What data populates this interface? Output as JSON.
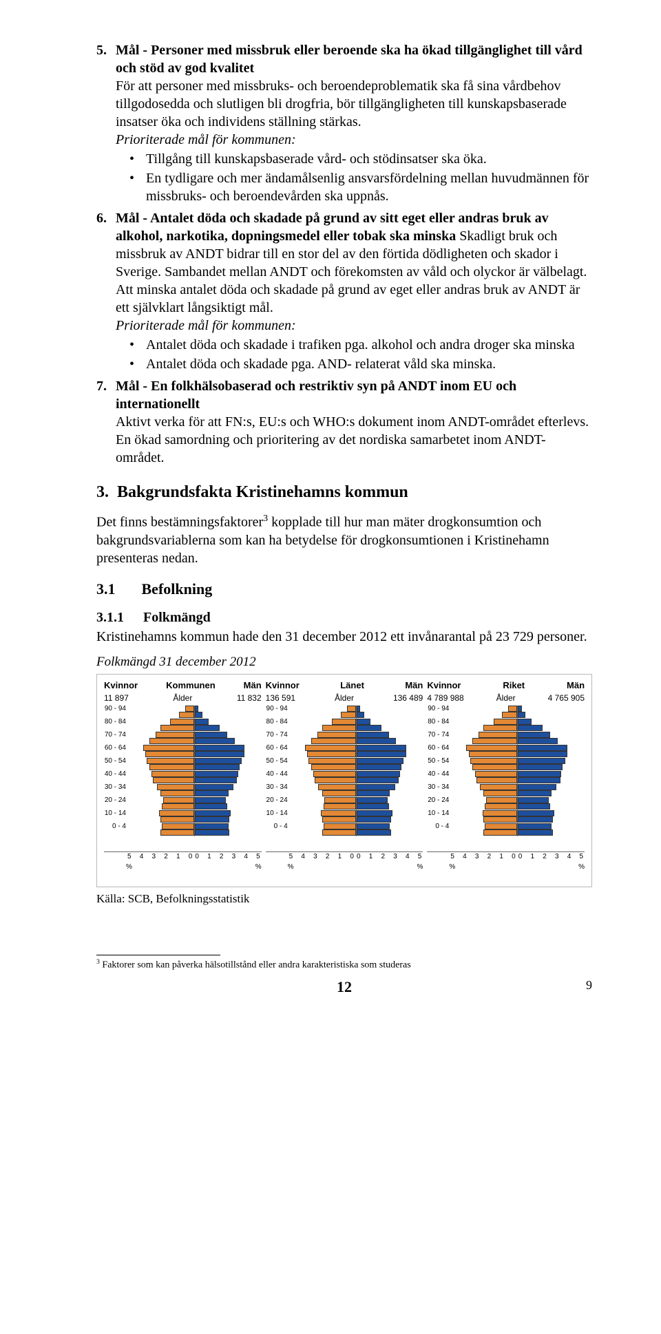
{
  "items": [
    {
      "num": "5.",
      "title": "Mål - Personer med missbruk eller beroende ska ha ökad tillgänglighet till vård och stöd av god kvalitet",
      "body": "För att personer med missbruks- och beroendeproblematik ska få sina vårdbehov tillgodosedda och slutligen bli drogfria, bör tillgängligheten till kunskapsbaserade insatser öka och individens ställning stärkas.",
      "prior_label": "Prioriterade mål för kommunen:",
      "bullets": [
        "Tillgång till kunskapsbaserade vård- och stödinsatser ska öka.",
        "En tydligare och mer ändamålsenlig ansvarsfördelning mellan huvudmännen för missbruks- och beroendevården ska uppnås."
      ]
    },
    {
      "num": "6.",
      "title": "Mål - Antalet döda och skadade på grund av sitt eget eller andras bruk av alkohol, narkotika, dopningsmedel eller tobak ska minska",
      "body": "Skadligt bruk och missbruk av ANDT bidrar till en stor del av den förtida dödligheten och skador i Sverige. Sambandet mellan ANDT och förekomsten av våld och olyckor är välbelagt. Att minska antalet döda och skadade på grund av eget eller andras bruk av ANDT är ett självklart långsiktigt mål.",
      "prior_label": "Prioriterade mål för kommunen:",
      "bullets": [
        "Antalet döda och skadade i trafiken pga. alkohol och andra droger ska minska",
        "Antalet döda och skadade pga. AND- relaterat våld ska minska."
      ]
    },
    {
      "num": "7.",
      "title": "Mål - En folkhälsobaserad och restriktiv syn på ANDT inom EU och internationellt",
      "body": "Aktivt verka för att FN:s, EU:s och WHO:s dokument inom ANDT-området efterlevs. En ökad samordning och prioritering av det nordiska samarbetet inom ANDT-området."
    }
  ],
  "h2": {
    "num": "3.",
    "text": "Bakgrundsfakta Kristinehamns kommun"
  },
  "para_after_h2_a": "Det finns bestämningsfaktorer",
  "para_after_h2_sup": "3",
  "para_after_h2_b": " kopplade till hur man mäter drogkonsumtion och bakgrundsvariablerna som kan ha betydelse för drogkonsumtionen i Kristinehamn presenteras nedan.",
  "h3": {
    "num": "3.1",
    "text": "Befolkning"
  },
  "h4": {
    "num": "3.1.1",
    "text": "Folkmängd"
  },
  "h4_body": "Kristinehamns kommun hade den 31 december 2012 ett invånarantal på 23 729 personer.",
  "chart_caption": "Folkmängd 31 december 2012",
  "charts": {
    "pct_label": "%",
    "age_header": "Ålder",
    "age_labels": [
      "90 - 94",
      "80 - 84",
      "70 - 74",
      "60 - 64",
      "50 - 54",
      "40 - 44",
      "30 - 34",
      "20 - 24",
      "10 - 14",
      "0 - 4"
    ],
    "x_ticks_left": [
      "5",
      "4",
      "3",
      "2",
      "1",
      "0"
    ],
    "x_ticks_right": [
      "0",
      "1",
      "2",
      "3",
      "4",
      "5"
    ],
    "bar_color_left": "#e38834",
    "bar_color_right": "#1e4f9c",
    "left_values": [
      0.6,
      1.1,
      1.8,
      2.6,
      3.0,
      3.5,
      4.0,
      3.8,
      3.7,
      3.5,
      3.3,
      3.2,
      2.9,
      2.6,
      2.4,
      2.5,
      2.7,
      2.6,
      2.5,
      2.6
    ],
    "right_values": [
      0.2,
      0.5,
      1.0,
      1.9,
      2.5,
      3.1,
      3.9,
      3.9,
      3.7,
      3.5,
      3.4,
      3.3,
      3.0,
      2.6,
      2.4,
      2.5,
      2.8,
      2.7,
      2.6,
      2.7
    ],
    "panels": [
      {
        "title": "Kommunen",
        "kv_label": "Kvinnor",
        "kv_val": "11 897",
        "men_label": "Män",
        "men_val": "11 832"
      },
      {
        "title": "Länet",
        "kv_label": "Kvinnor",
        "kv_val": "136 591",
        "men_label": "Män",
        "men_val": "136 489"
      },
      {
        "title": "Riket",
        "kv_label": "Kvinnor",
        "kv_val": "4 789 988",
        "men_label": "Män",
        "men_val": "4 765 905"
      }
    ]
  },
  "source": "Källa: SCB, Befolkningsstatistik",
  "footnote_sup": "3",
  "footnote_text": " Faktorer som kan påverka hälsotillstånd eller andra karakteristiska som studeras",
  "page_center": "12",
  "page_side": "9"
}
